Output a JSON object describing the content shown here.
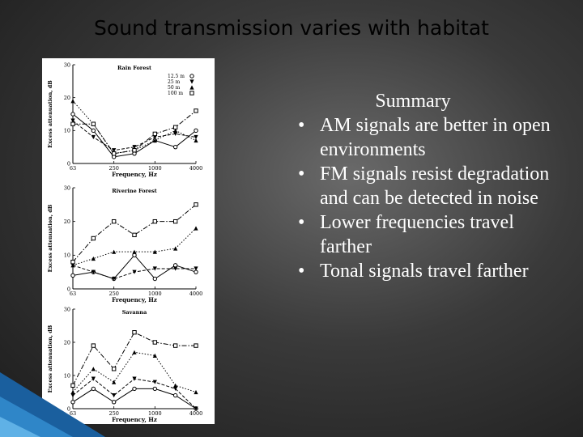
{
  "title": "Sound transmission varies with habitat",
  "summary": {
    "heading": "Summary",
    "bullets": [
      "AM signals are better in open environments",
      "FM signals resist degradation and can be detected in noise",
      "Lower frequencies travel farther",
      "Tonal signals travel farther"
    ]
  },
  "colors": {
    "background": "#3a3a3a",
    "text_light": "#ffffff",
    "accent": "#1f6fb5"
  },
  "chart_data": [
    {
      "type": "line",
      "title": "Rain Forest",
      "xlabel": "Frequency, Hz",
      "ylabel": "Excess attenuation, dB",
      "x": [
        63,
        125,
        250,
        500,
        1000,
        2000,
        4000
      ],
      "xticks": [
        "63",
        "250",
        "1000",
        "4000"
      ],
      "yticks": [
        0,
        10,
        20,
        30
      ],
      "ylim": [
        0,
        30
      ],
      "legend_position": "top-right",
      "series": [
        {
          "name": "12.5 m",
          "marker": "circle",
          "values": [
            15,
            10,
            2,
            3,
            7,
            5,
            10
          ]
        },
        {
          "name": "25 m",
          "marker": "down-triangle",
          "values": [
            13,
            8,
            4,
            5,
            8,
            9,
            8
          ]
        },
        {
          "name": "50 m",
          "marker": "triangle",
          "values": [
            19,
            12,
            3,
            4,
            7,
            10,
            7
          ]
        },
        {
          "name": "100 m",
          "marker": "square",
          "values": [
            12,
            12,
            3,
            4,
            9,
            11,
            16
          ]
        }
      ]
    },
    {
      "type": "line",
      "title": "Riverine Forest",
      "xlabel": "Frequency, Hz",
      "ylabel": "Excess attenuation, dB",
      "x": [
        63,
        125,
        250,
        500,
        1000,
        2000,
        4000
      ],
      "xticks": [
        "63",
        "250",
        "1000",
        "4000"
      ],
      "yticks": [
        0,
        10,
        20,
        30
      ],
      "ylim": [
        0,
        30
      ],
      "series": [
        {
          "name": "12.5 m",
          "marker": "circle",
          "values": [
            4,
            5,
            3,
            10,
            3,
            7,
            5
          ]
        },
        {
          "name": "25 m",
          "marker": "down-triangle",
          "values": [
            7,
            5,
            3,
            5,
            6,
            6,
            6
          ]
        },
        {
          "name": "50 m",
          "marker": "triangle",
          "values": [
            7,
            9,
            11,
            11,
            11,
            12,
            18
          ]
        },
        {
          "name": "100 m",
          "marker": "square",
          "values": [
            8,
            15,
            20,
            16,
            20,
            20,
            25
          ]
        }
      ]
    },
    {
      "type": "line",
      "title": "Savanna",
      "xlabel": "Frequency, Hz",
      "ylabel": "Excess attenuation, dB",
      "x": [
        63,
        125,
        250,
        500,
        1000,
        2000,
        4000
      ],
      "xticks": [
        "63",
        "250",
        "1000",
        "4000"
      ],
      "yticks": [
        0,
        10,
        20,
        30
      ],
      "ylim": [
        0,
        30
      ],
      "series": [
        {
          "name": "12.5 m",
          "marker": "circle",
          "values": [
            2,
            6,
            2,
            6,
            6,
            4,
            0
          ]
        },
        {
          "name": "25 m",
          "marker": "down-triangle",
          "values": [
            4,
            9,
            4,
            9,
            8,
            6,
            0
          ]
        },
        {
          "name": "50 m",
          "marker": "triangle",
          "values": [
            5,
            12,
            8,
            17,
            16,
            7,
            5
          ]
        },
        {
          "name": "100 m",
          "marker": "square",
          "values": [
            7,
            19,
            12,
            23,
            20,
            19,
            19
          ]
        }
      ]
    }
  ]
}
